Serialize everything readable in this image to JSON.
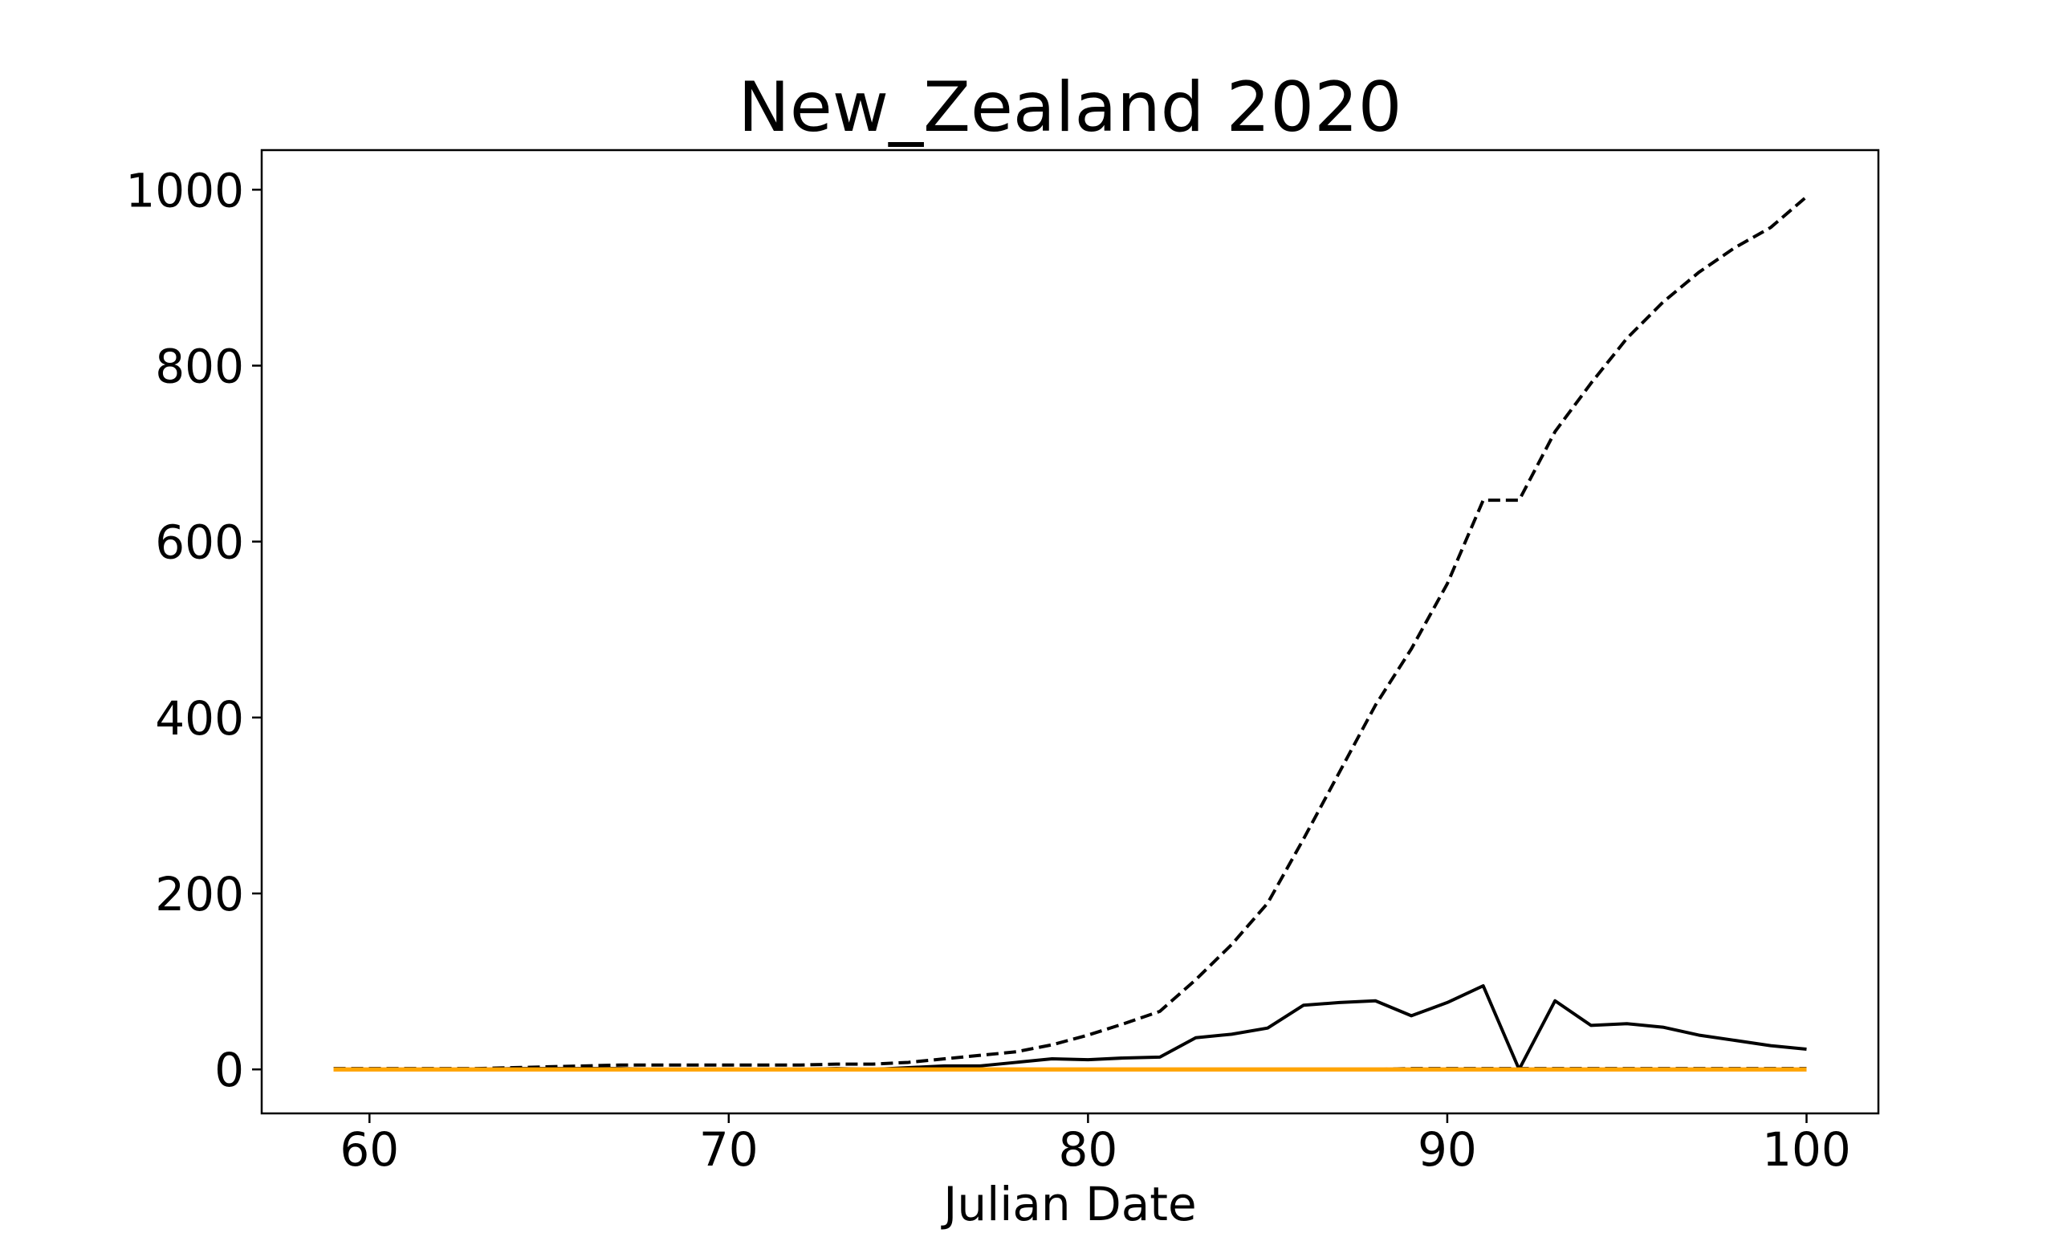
{
  "chart_data": {
    "type": "line",
    "title": "New_Zealand 2020",
    "xlabel": "Julian Date",
    "ylabel": "",
    "xlim": [
      57,
      102
    ],
    "ylim": [
      -50,
      1045
    ],
    "xticks": [
      60,
      70,
      80,
      90,
      100
    ],
    "yticks": [
      0,
      200,
      400,
      600,
      800,
      1000
    ],
    "grid": false,
    "legend": "none",
    "x": [
      59,
      60,
      61,
      62,
      63,
      64,
      65,
      66,
      67,
      68,
      69,
      70,
      71,
      72,
      73,
      74,
      75,
      76,
      77,
      78,
      79,
      80,
      81,
      82,
      83,
      84,
      85,
      86,
      87,
      88,
      89,
      90,
      91,
      92,
      93,
      94,
      95,
      96,
      97,
      98,
      99,
      100
    ],
    "series": [
      {
        "color": "#000000",
        "style": "dashed",
        "values": [
          1,
          1,
          1,
          1,
          1,
          2,
          3,
          4,
          5,
          5,
          5,
          5,
          5,
          5,
          6,
          6,
          8,
          12,
          16,
          20,
          28,
          39,
          52,
          66,
          102,
          142,
          189,
          262,
          338,
          414,
          478,
          552,
          647,
          647,
          725,
          780,
          831,
          872,
          906,
          934,
          957,
          992
        ]
      },
      {
        "color": "#000000",
        "style": "solid",
        "values": [
          0,
          0,
          0,
          0,
          0,
          1,
          1,
          1,
          1,
          0,
          0,
          0,
          0,
          0,
          1,
          0,
          2,
          4,
          4,
          8,
          12,
          11,
          13,
          14,
          36,
          40,
          47,
          73,
          76,
          78,
          61,
          76,
          95,
          0,
          78,
          50,
          52,
          48,
          39,
          33,
          27,
          23
        ]
      },
      {
        "color": "#000000",
        "style": "dashed",
        "values": [
          0,
          0,
          0,
          0,
          0,
          0,
          0,
          0,
          0,
          0,
          0,
          0,
          0,
          0,
          0,
          0,
          0,
          0,
          0,
          0,
          0,
          0,
          0,
          0,
          0,
          0,
          0,
          0,
          0,
          0,
          1,
          1,
          1,
          1,
          1,
          1,
          1,
          1,
          1,
          1,
          1,
          1
        ]
      },
      {
        "color": "#ff7f0e",
        "style": "solid",
        "values": [
          0,
          0,
          0,
          0,
          0,
          0,
          0,
          0,
          0,
          0,
          0,
          0,
          0,
          0,
          0,
          0,
          0,
          0,
          0,
          0,
          0,
          0,
          0,
          0,
          0,
          0,
          0,
          0,
          0,
          0,
          0,
          0,
          0,
          0,
          0,
          0,
          0,
          0,
          0,
          0,
          0,
          0
        ]
      },
      {
        "color": "#ffa500",
        "style": "solid",
        "values": [
          0,
          0,
          0,
          0,
          0,
          0,
          0,
          0,
          0,
          0,
          0,
          0,
          0,
          0,
          0,
          0,
          0,
          0,
          0,
          0,
          0,
          0,
          0,
          0,
          0,
          0,
          0,
          0,
          0,
          0,
          0,
          0,
          0,
          0,
          0,
          0,
          0,
          0,
          0,
          0,
          0,
          0
        ]
      }
    ]
  }
}
